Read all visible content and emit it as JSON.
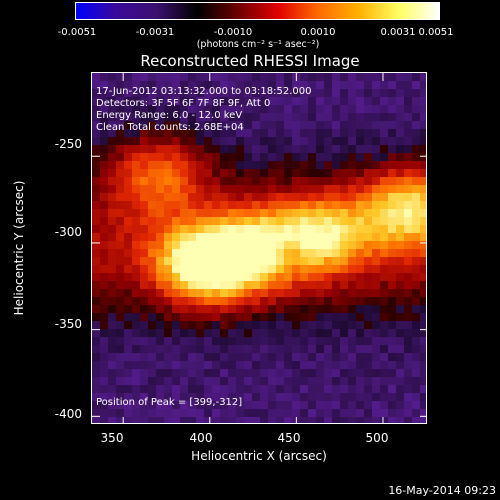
{
  "colorbar": {
    "ticks": [
      "-0.0051",
      "-0.0031",
      "-0.0010",
      "0.0010",
      "0.0031",
      "0.0051"
    ],
    "units": "(photons cm⁻² s⁻¹ asec⁻²)",
    "colors": [
      "#0000ff",
      "#3a0a9a",
      "#3a1070",
      "#000000",
      "#6a0000",
      "#e00000",
      "#ff6a00",
      "#ffb000",
      "#ffff60",
      "#ffffff"
    ]
  },
  "plot": {
    "title": "Reconstructed RHESSI Image",
    "info_lines": [
      "17-Jun-2012 03:13:32.000 to 03:18:52.000",
      "Detectors: 3F 5F 6F 7F 8F 9F, Att 0",
      "Energy Range: 6.0 - 12.0 keV",
      "Clean     Total counts: 2.68E+04"
    ],
    "peak_label": "Position of Peak = [399,-312]",
    "xlabel": "Heliocentric X (arcsec)",
    "ylabel": "Heliocentric Y (arcsec)",
    "xticks": [
      "350",
      "400",
      "450",
      "500"
    ],
    "yticks": [
      "-250",
      "-300",
      "-350",
      "-400"
    ],
    "footer": "16-May-2014 09:23"
  },
  "chart_data": {
    "type": "heatmap",
    "title": "Reconstructed RHESSI Image",
    "xlabel": "Heliocentric X (arcsec)",
    "ylabel": "Heliocentric Y (arcsec)",
    "xlim": [
      332,
      526
    ],
    "ylim": [
      -405,
      -202
    ],
    "colorbar_range": [
      -0.0051,
      0.0051
    ],
    "peak": [
      399,
      -312
    ],
    "sources": [
      {
        "x": 399,
        "y": -312,
        "intensity": 1.0
      },
      {
        "x": 430,
        "y": -303,
        "intensity": 0.55
      },
      {
        "x": 465,
        "y": -295,
        "intensity": 0.6
      },
      {
        "x": 515,
        "y": -280,
        "intensity": 0.7
      },
      {
        "x": 370,
        "y": -260,
        "intensity": 0.5
      }
    ]
  }
}
